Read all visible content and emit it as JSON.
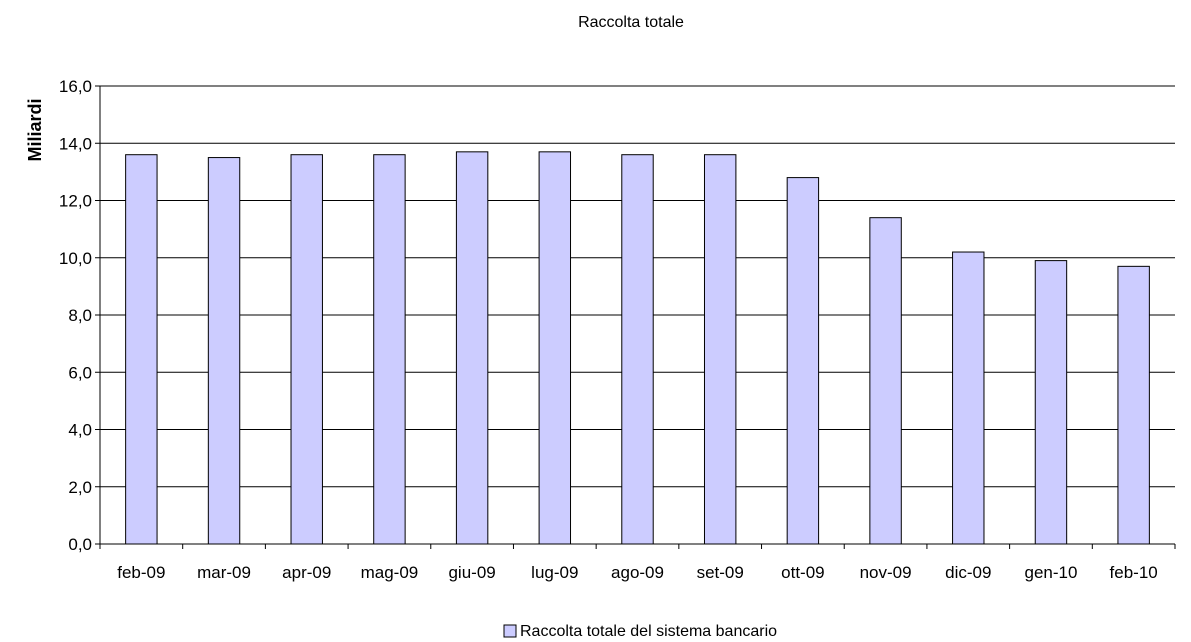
{
  "chart_data": {
    "type": "bar",
    "title": "Raccolta totale",
    "ylabel": "Miliardi",
    "xlabel": "",
    "categories": [
      "feb-09",
      "mar-09",
      "apr-09",
      "mag-09",
      "giu-09",
      "lug-09",
      "ago-09",
      "set-09",
      "ott-09",
      "nov-09",
      "dic-09",
      "gen-10",
      "feb-10"
    ],
    "series": [
      {
        "name": "Raccolta totale del sistema bancario",
        "values": [
          13.6,
          13.5,
          13.6,
          13.6,
          13.7,
          13.7,
          13.6,
          13.6,
          12.8,
          11.4,
          10.2,
          9.9,
          9.7
        ],
        "color": "#ccccff"
      }
    ],
    "ylim": [
      0,
      16
    ],
    "ytick_step": 2,
    "ytick_labels": [
      "0,0",
      "2,0",
      "4,0",
      "6,0",
      "8,0",
      "10,0",
      "12,0",
      "14,0",
      "16,0"
    ],
    "grid": true,
    "legend_position": "bottom-center",
    "bar_edge_color": "#000000"
  }
}
